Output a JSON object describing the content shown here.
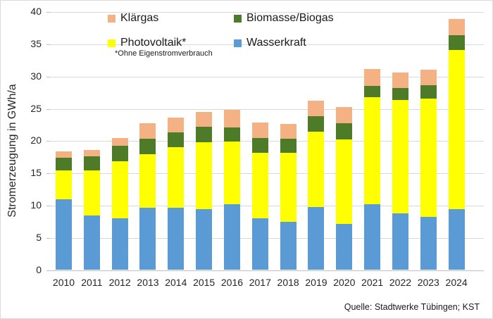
{
  "chart_data": {
    "type": "bar",
    "stacked": true,
    "title": "",
    "xlabel": "",
    "ylabel": "Stromerzeugung in GWh/a",
    "ylim": [
      0,
      40
    ],
    "ytick_step": 5,
    "grid": true,
    "legend_position": "top",
    "categories": [
      "2010",
      "2011",
      "2012",
      "2013",
      "2014",
      "2015",
      "2016",
      "2017",
      "2018",
      "2019",
      "2020",
      "2021",
      "2022",
      "2023",
      "2024"
    ],
    "series": [
      {
        "name": "Wasserkraft",
        "color": "#5B9BD5",
        "values": [
          11.0,
          8.5,
          8.0,
          9.7,
          9.7,
          9.4,
          10.2,
          8.0,
          7.5,
          9.8,
          7.1,
          10.2,
          8.8,
          8.2,
          9.4
        ]
      },
      {
        "name": "Photovoltaik*",
        "color": "#FFFF00",
        "values": [
          4.4,
          6.9,
          8.9,
          8.3,
          9.4,
          10.4,
          9.7,
          10.2,
          10.7,
          11.7,
          13.2,
          16.6,
          17.6,
          18.4,
          24.7
        ]
      },
      {
        "name": "Biomasse/Biogas",
        "color": "#4E7B28",
        "values": [
          2.0,
          2.2,
          2.4,
          2.4,
          2.2,
          2.4,
          2.2,
          2.3,
          2.2,
          2.4,
          2.5,
          1.8,
          1.8,
          2.1,
          2.3
        ]
      },
      {
        "name": "Klärgas",
        "color": "#F4B183",
        "values": [
          1.0,
          1.0,
          1.2,
          2.4,
          2.3,
          2.3,
          2.7,
          2.4,
          2.2,
          2.4,
          2.5,
          2.6,
          2.4,
          2.4,
          2.5
        ]
      }
    ],
    "totals": [
      18.4,
      18.6,
      20.5,
      22.8,
      23.6,
      24.5,
      24.8,
      22.9,
      22.6,
      26.3,
      25.3,
      31.2,
      30.6,
      31.1,
      38.9
    ],
    "legend": {
      "items": [
        {
          "label": "Klärgas",
          "series_index": 3
        },
        {
          "label": "Biomasse/Biogas",
          "series_index": 2
        },
        {
          "label": "Photovoltaik*",
          "series_index": 1
        },
        {
          "label": "Wasserkraft",
          "series_index": 0
        }
      ],
      "footnote": "*Ohne Eigenstromverbrauch"
    },
    "source": "Quelle: Stadtwerke Tübingen; KST",
    "colors": {
      "gridline": "#D9D9D9",
      "axis": "#BFBFBF",
      "text": "#262626"
    }
  }
}
